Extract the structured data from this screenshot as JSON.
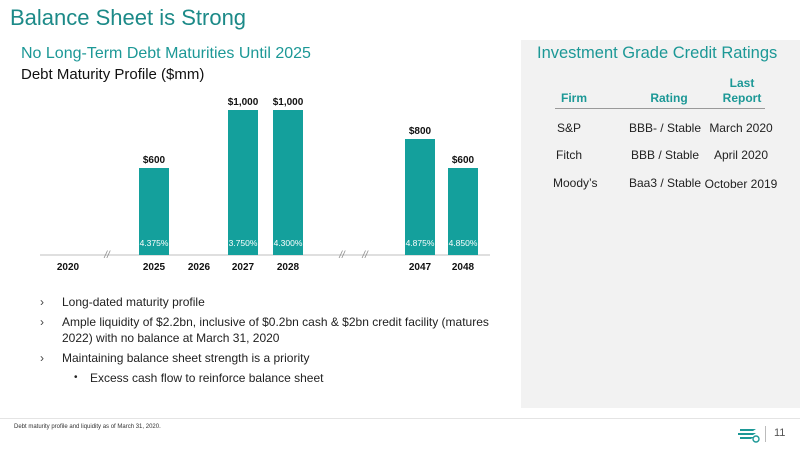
{
  "title": "Balance Sheet is Strong",
  "subtitle": "No Long-Term Debt Maturities Until 2025",
  "chart_title": "Debt Maturity Profile ($mm)",
  "chart_data": {
    "type": "bar",
    "title": "Debt Maturity Profile ($mm)",
    "categories": [
      "2020",
      "2025",
      "2026",
      "2027",
      "2028",
      "2047",
      "2048"
    ],
    "values": [
      0,
      600,
      0,
      1000,
      1000,
      800,
      600
    ],
    "value_labels": [
      "",
      "$600",
      "",
      "$1,000",
      "$1,000",
      "$800",
      "$600"
    ],
    "rate_labels": [
      "",
      "4.375%",
      "",
      "3.750%",
      "4.300%",
      "4.875%",
      "4.850%"
    ],
    "axis_breaks": [
      "//",
      "//",
      "//"
    ],
    "ylim": [
      0,
      1000
    ],
    "grid": false,
    "color": "#14a09c"
  },
  "bullets": [
    {
      "text": "Long-dated maturity profile",
      "marker": "›"
    },
    {
      "text": "Ample liquidity of $2.2bn, inclusive of $0.2bn cash & $2bn credit facility (matures 2022) with no balance at March 31, 2020",
      "marker": "›"
    },
    {
      "text": "Maintaining balance sheet strength is a priority",
      "marker": "›"
    }
  ],
  "sub_bullet": {
    "text": "Excess cash flow to reinforce balance sheet",
    "marker": "•"
  },
  "ratings": {
    "title": "Investment Grade Credit Ratings",
    "headers": [
      "Firm",
      "Rating",
      "Last Report"
    ],
    "rows": [
      {
        "firm": "S&P",
        "rating": "BBB- / Stable",
        "report": "March 2020"
      },
      {
        "firm": "Fitch",
        "rating": "BBB / Stable",
        "report": "April 2020"
      },
      {
        "firm": "Moody’s",
        "rating": "Baa3 / Stable",
        "report": "October 2019"
      }
    ]
  },
  "footnote": "Debt maturity profile and liquidity as of March 31, 2020.",
  "page_number": "11",
  "logo_icon": "company-logo-icon"
}
